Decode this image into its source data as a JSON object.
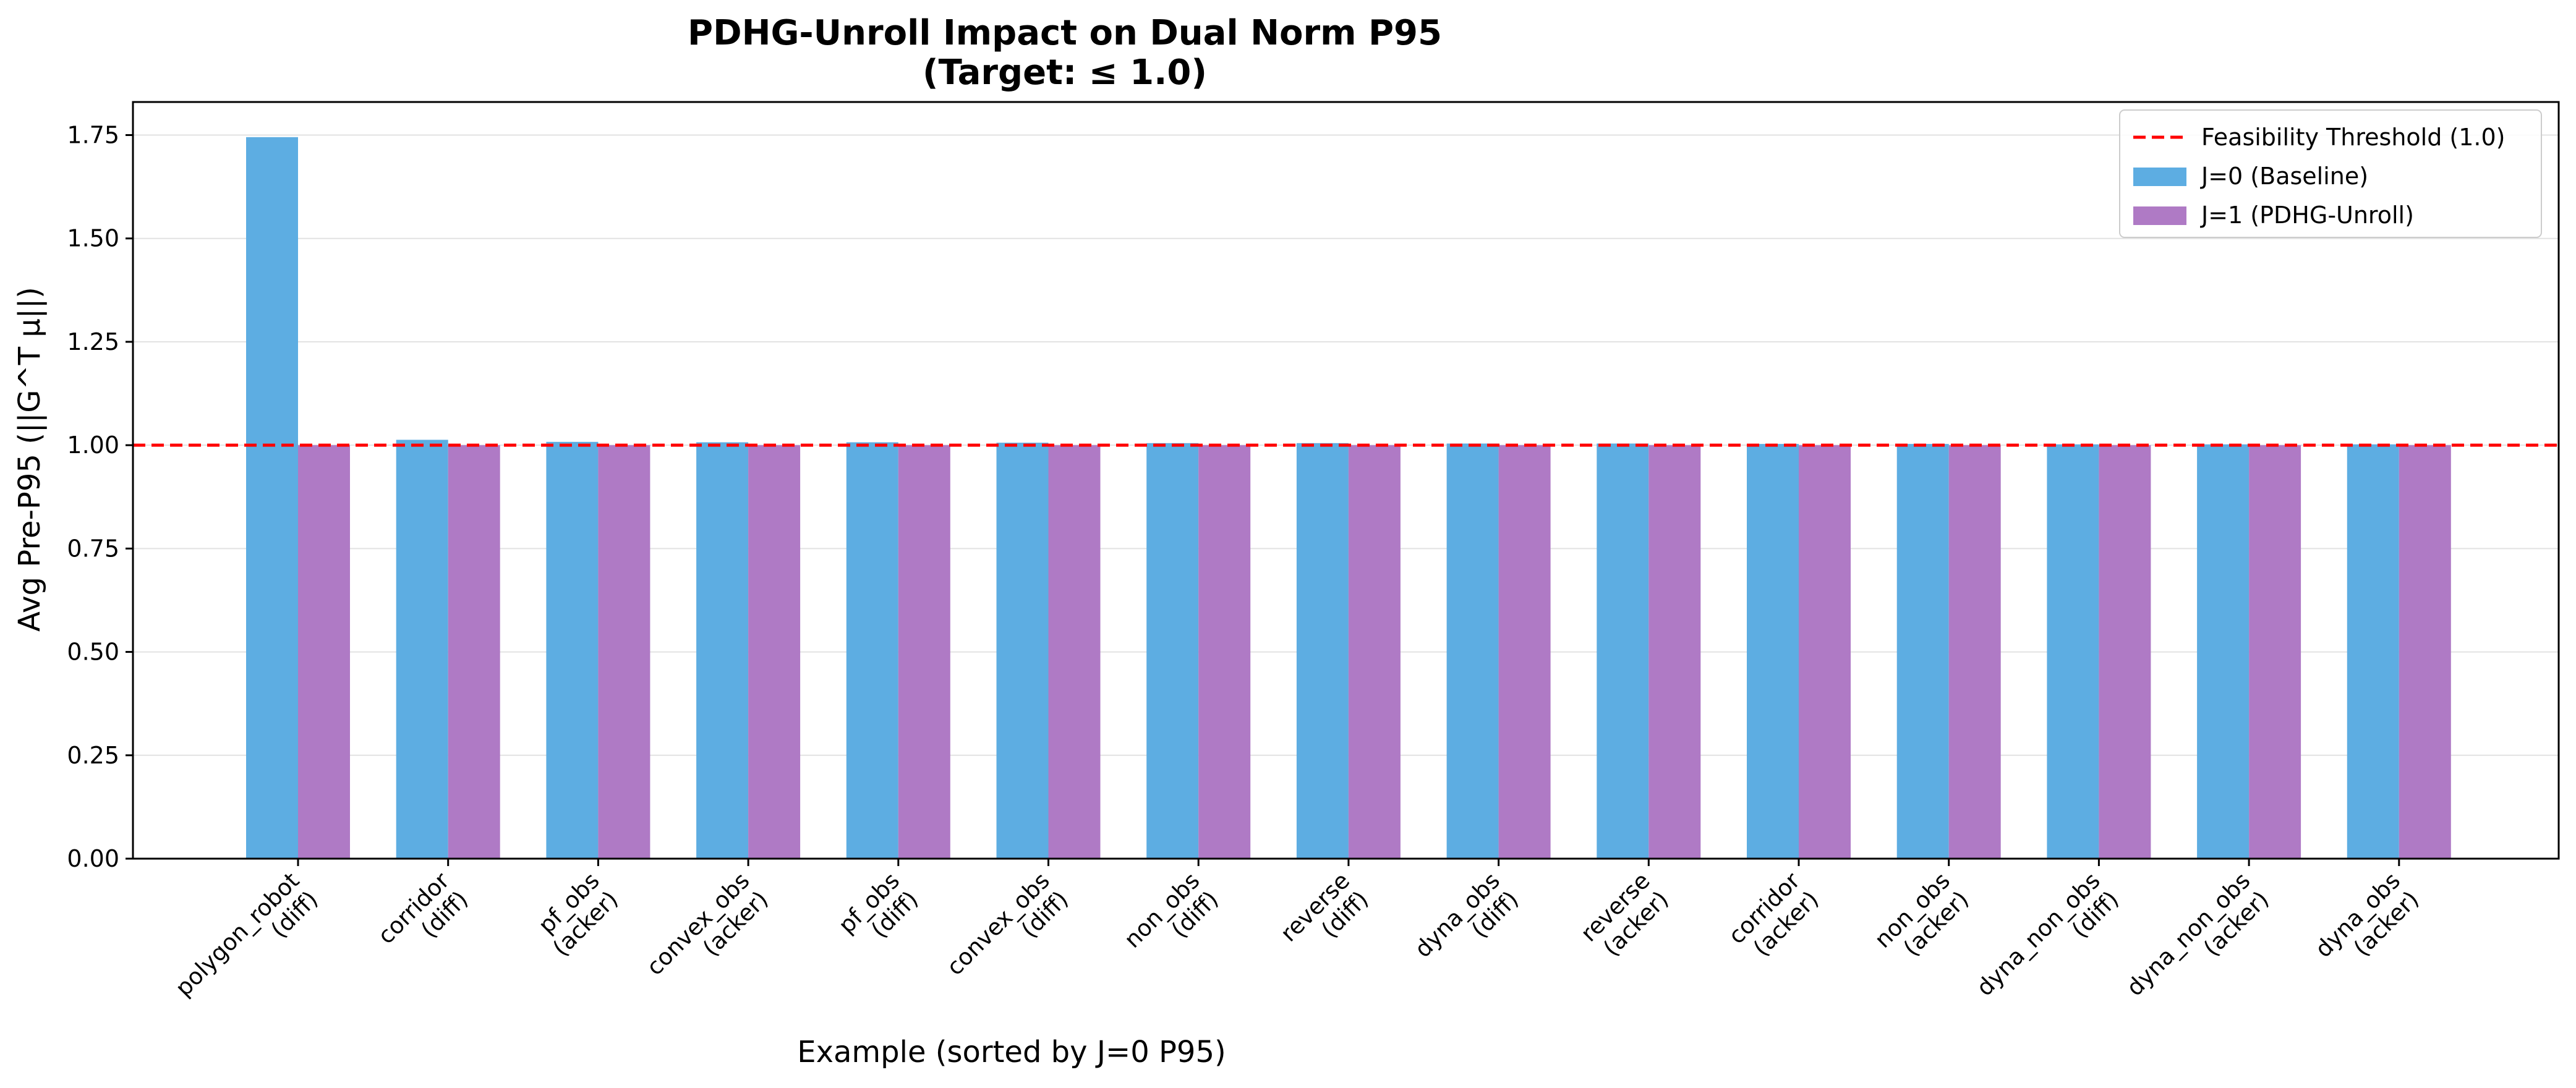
{
  "chart_data": {
    "type": "bar",
    "title": "PDHG-Unroll Impact on Dual Norm P95",
    "subtitle": "(Target: ≤ 1.0)",
    "xlabel": "Example (sorted by J=0 P95)",
    "ylabel": "Avg Pre-P95 (||G^T μ||)",
    "ylim": [
      0,
      1.83
    ],
    "yticks": [
      "0.00",
      "0.25",
      "0.50",
      "0.75",
      "1.00",
      "1.25",
      "1.50",
      "1.75"
    ],
    "ytick_values": [
      0,
      0.25,
      0.5,
      0.75,
      1.0,
      1.25,
      1.5,
      1.75
    ],
    "grid": "horizontal",
    "legend_position": "top-right",
    "categories": [
      [
        "polygon_robot",
        "(diff)"
      ],
      [
        "corridor",
        "(diff)"
      ],
      [
        "pf_obs",
        "(acker)"
      ],
      [
        "convex_obs",
        "(acker)"
      ],
      [
        "pf_obs",
        "(diff)"
      ],
      [
        "convex_obs",
        "(diff)"
      ],
      [
        "non_obs",
        "(diff)"
      ],
      [
        "reverse",
        "(diff)"
      ],
      [
        "dyna_obs",
        "(diff)"
      ],
      [
        "reverse",
        "(acker)"
      ],
      [
        "corridor",
        "(acker)"
      ],
      [
        "non_obs",
        "(acker)"
      ],
      [
        "dyna_non_obs",
        "(diff)"
      ],
      [
        "dyna_non_obs",
        "(acker)"
      ],
      [
        "dyna_obs",
        "(acker)"
      ]
    ],
    "series": [
      {
        "name": "J=0 (Baseline)",
        "color": "#5DADE2",
        "values": [
          1.745,
          1.013,
          1.008,
          1.007,
          1.007,
          1.006,
          1.005,
          1.005,
          1.004,
          1.004,
          1.003,
          1.003,
          1.002,
          1.002,
          1.002
        ]
      },
      {
        "name": "J=1 (PDHG-Unroll)",
        "color": "#AF7AC5",
        "values": [
          1.0,
          1.0,
          1.0,
          1.0,
          1.0,
          1.0,
          1.0,
          1.0,
          1.0,
          1.0,
          1.0,
          1.0,
          1.0,
          1.0,
          1.0
        ]
      }
    ],
    "threshold": {
      "name": "Feasibility Threshold (1.0)",
      "value": 1.0,
      "color": "#FF0000",
      "style": "dashed"
    }
  }
}
